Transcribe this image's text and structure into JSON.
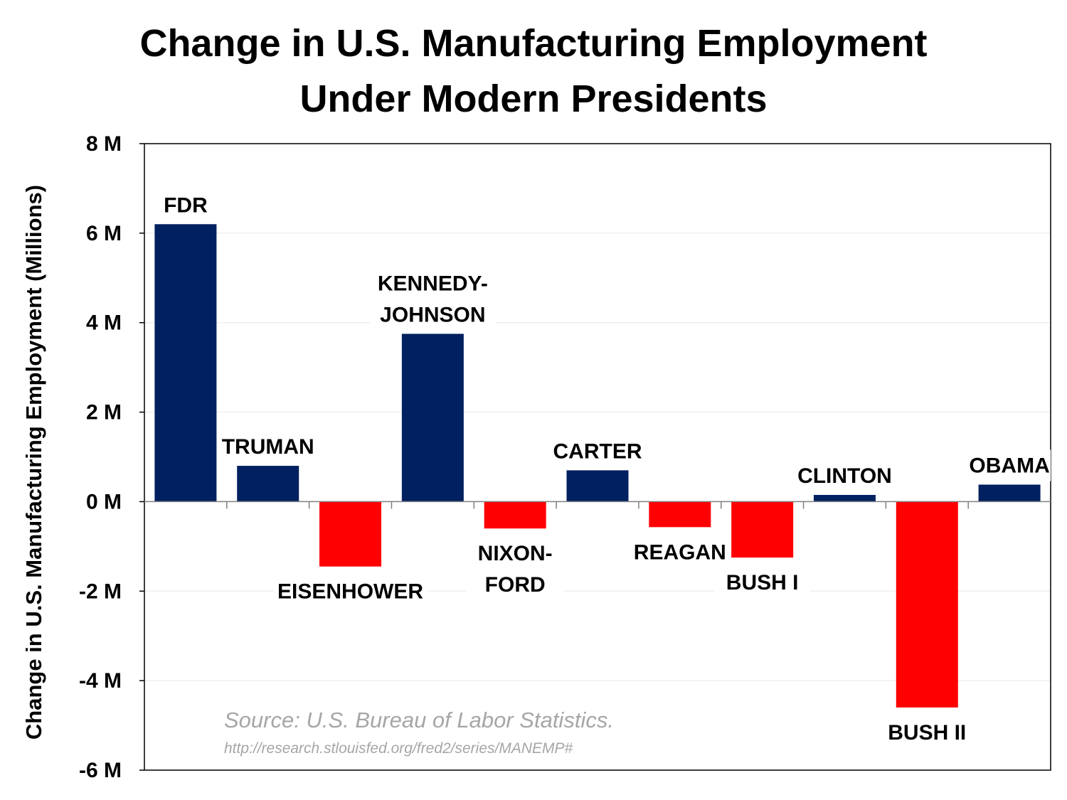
{
  "chart_data": {
    "type": "bar",
    "title_lines": [
      "Change in U.S. Manufacturing Employment",
      "Under Modern Presidents"
    ],
    "ylabel": "Change in U.S. Manufacturing Employment (Millions)",
    "xlabel": "",
    "ylim": [
      -6,
      8
    ],
    "y_ticks": [
      8,
      6,
      4,
      2,
      0,
      -2,
      -4,
      -6
    ],
    "y_tick_labels": [
      "8 M",
      "6 M",
      "4 M",
      "2 M",
      "0 M",
      "-2 M",
      "-4 M",
      "-6 M"
    ],
    "grid": true,
    "categories": [
      {
        "name": "FDR",
        "label_lines": [
          "FDR"
        ],
        "value": 6.2
      },
      {
        "name": "TRUMAN",
        "label_lines": [
          "TRUMAN"
        ],
        "value": 0.8
      },
      {
        "name": "EISENHOWER",
        "label_lines": [
          "EISENHOWER"
        ],
        "value": -1.45
      },
      {
        "name": "KENNEDY-JOHNSON",
        "label_lines": [
          "KENNEDY-",
          "JOHNSON"
        ],
        "value": 3.75
      },
      {
        "name": "NIXON-FORD",
        "label_lines": [
          "NIXON-",
          "FORD"
        ],
        "value": -0.6
      },
      {
        "name": "CARTER",
        "label_lines": [
          "CARTER"
        ],
        "value": 0.7
      },
      {
        "name": "REAGAN",
        "label_lines": [
          "REAGAN"
        ],
        "value": -0.57
      },
      {
        "name": "BUSH I",
        "label_lines": [
          "BUSH I"
        ],
        "value": -1.25
      },
      {
        "name": "CLINTON",
        "label_lines": [
          "CLINTON"
        ],
        "value": 0.15
      },
      {
        "name": "BUSH II",
        "label_lines": [
          "BUSH II"
        ],
        "value": -4.6
      },
      {
        "name": "OBAMA",
        "label_lines": [
          "OBAMA"
        ],
        "value": 0.38
      }
    ],
    "colors": {
      "positive": "#002060",
      "negative": "#ff0000",
      "grid": "#efefef",
      "axis": "#000000",
      "source_text": "#a6a6a6"
    },
    "source": {
      "text": "Source: U.S. Bureau of Labor Statistics.",
      "url": "http://research.stlouisfed.org/fred2/series/MANEMP#"
    }
  }
}
